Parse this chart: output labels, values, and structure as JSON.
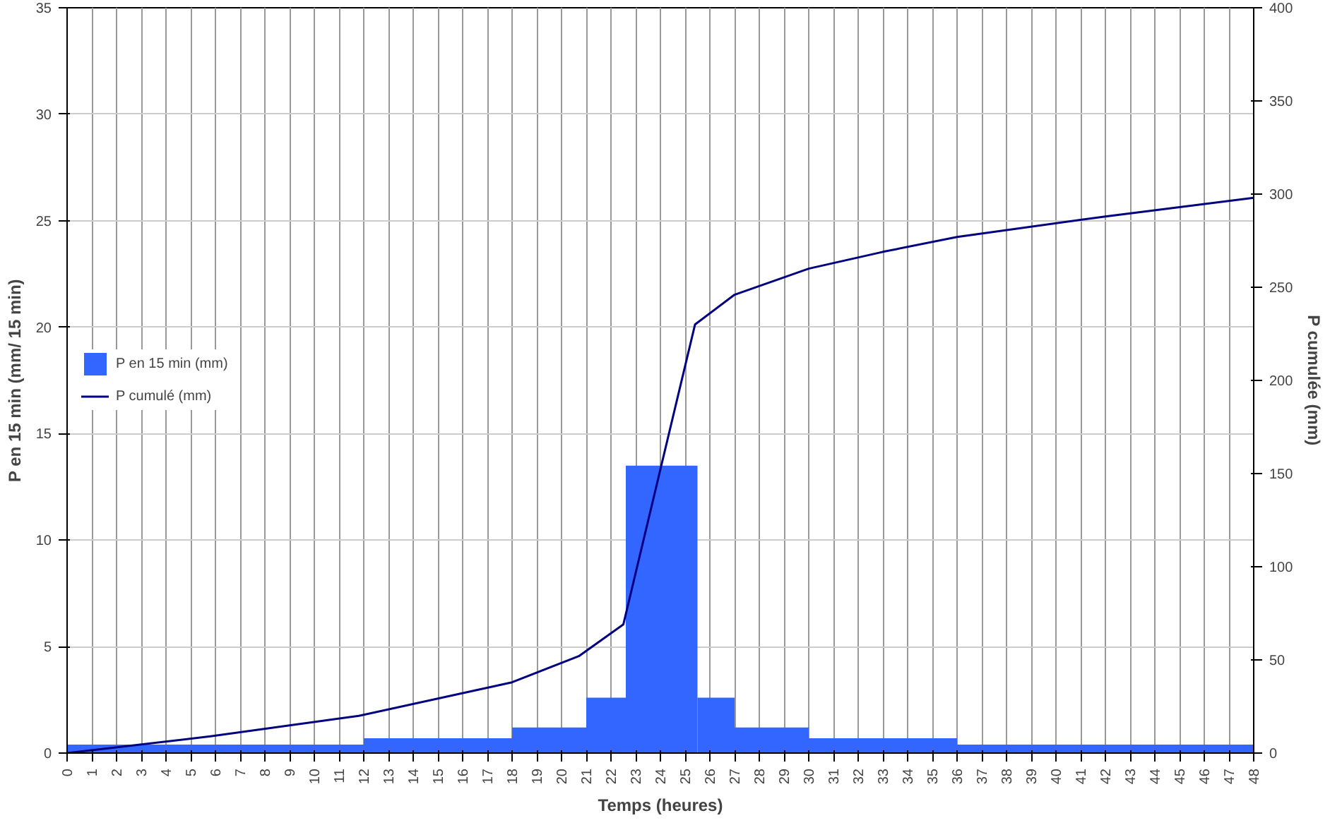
{
  "chart_data": {
    "type": "histogram",
    "xlabel": "Temps (heures)",
    "ylabel": "P en 15 min (mm/ 15 min)",
    "y2label": "P cumulée (mm)",
    "xlim": [
      0,
      48
    ],
    "xticks": [
      0,
      1,
      2,
      3,
      4,
      5,
      6,
      7,
      8,
      9,
      10,
      11,
      12,
      13,
      14,
      15,
      16,
      17,
      18,
      19,
      20,
      21,
      22,
      23,
      24,
      25,
      26,
      27,
      28,
      29,
      30,
      31,
      32,
      33,
      34,
      35,
      36,
      37,
      38,
      39,
      40,
      41,
      42,
      43,
      44,
      45,
      46,
      47,
      48
    ],
    "ylim": [
      0,
      35
    ],
    "yticks": [
      0,
      5,
      10,
      15,
      20,
      25,
      30,
      35
    ],
    "y2lim": [
      0,
      400
    ],
    "y2ticks": [
      0,
      50,
      100,
      150,
      200,
      250,
      300,
      350,
      400
    ],
    "grid": true,
    "legend": "left",
    "series": [
      {
        "name": "P en 15 min (mm)",
        "color": "#3366ff",
        "bins": [
          0,
          12,
          18,
          21,
          22.6,
          25.5,
          27,
          30,
          36,
          48
        ],
        "values": [
          0.4,
          0.7,
          1.2,
          2.6,
          13.5,
          2.6,
          1.2,
          0.7,
          0.4
        ]
      },
      {
        "name": "P cumulé (mm)",
        "type": "line",
        "axis": "y2",
        "color": "#000080",
        "x": [
          0,
          5.8,
          11.8,
          18,
          20.7,
          22.5,
          25.4,
          27,
          30,
          33,
          36,
          42,
          48
        ],
        "values": [
          0,
          9,
          20,
          38,
          52,
          69,
          230,
          246,
          260,
          269,
          277,
          288,
          298
        ]
      }
    ]
  }
}
